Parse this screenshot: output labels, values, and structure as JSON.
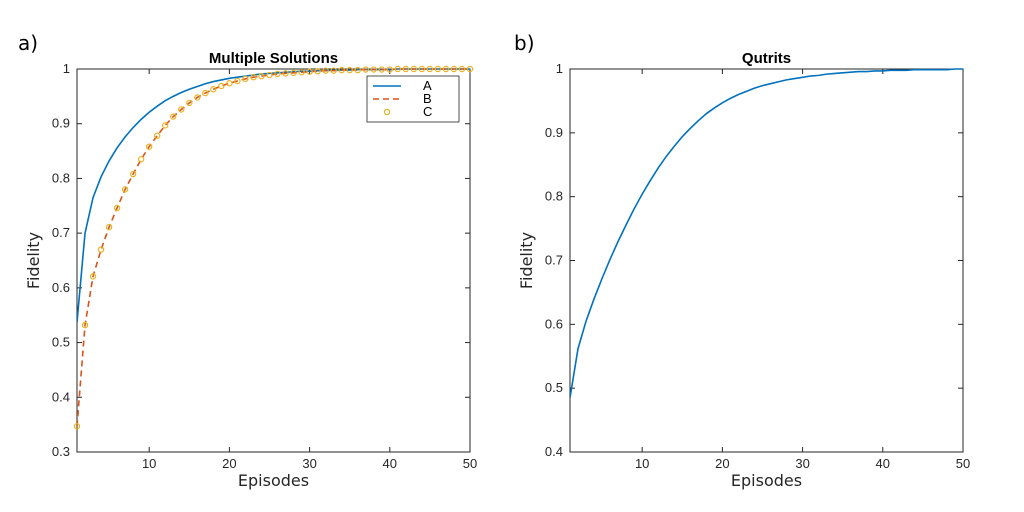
{
  "colors": {
    "series_a": "#0072BD",
    "series_b": "#D95319",
    "series_c": "#EDB120",
    "axis": "#262626"
  },
  "chart_data": [
    {
      "panel_label": "a)",
      "type": "line",
      "title": "Multiple Solutions",
      "xlabel": "Episodes",
      "ylabel": "Fidelity",
      "xlim": [
        1,
        50
      ],
      "ylim": [
        0.3,
        1.0
      ],
      "xticks": [
        "10",
        "20",
        "30",
        "40",
        "50"
      ],
      "yticks": [
        "0.3",
        "0.4",
        "0.5",
        "0.6",
        "0.7",
        "0.8",
        "0.9",
        "1"
      ],
      "legend_position": "top-right",
      "x": [
        1,
        2,
        3,
        4,
        5,
        6,
        7,
        8,
        9,
        10,
        11,
        12,
        13,
        14,
        15,
        16,
        17,
        18,
        19,
        20,
        21,
        22,
        23,
        24,
        25,
        26,
        27,
        28,
        29,
        30,
        31,
        32,
        33,
        34,
        35,
        36,
        37,
        38,
        39,
        40,
        41,
        42,
        43,
        44,
        45,
        46,
        47,
        48,
        49,
        50
      ],
      "series": [
        {
          "name": "A",
          "style": "solid",
          "values": [
            0.537,
            0.7,
            0.765,
            0.803,
            0.832,
            0.856,
            0.876,
            0.893,
            0.908,
            0.921,
            0.932,
            0.942,
            0.95,
            0.957,
            0.963,
            0.968,
            0.973,
            0.977,
            0.98,
            0.983,
            0.985,
            0.987,
            0.989,
            0.991,
            0.992,
            0.993,
            0.994,
            0.995,
            0.996,
            0.996,
            0.997,
            0.997,
            0.998,
            0.998,
            0.998,
            0.999,
            0.999,
            0.999,
            0.999,
            0.999,
            1.0,
            1.0,
            1.0,
            1.0,
            1.0,
            1.0,
            1.0,
            1.0,
            1.0,
            1.0
          ]
        },
        {
          "name": "B",
          "style": "dashed",
          "values": [
            0.347,
            0.532,
            0.621,
            0.67,
            0.711,
            0.746,
            0.78,
            0.808,
            0.835,
            0.858,
            0.878,
            0.897,
            0.913,
            0.926,
            0.938,
            0.948,
            0.956,
            0.963,
            0.969,
            0.974,
            0.978,
            0.982,
            0.985,
            0.987,
            0.989,
            0.991,
            0.992,
            0.993,
            0.994,
            0.995,
            0.996,
            0.997,
            0.997,
            0.998,
            0.998,
            0.998,
            0.999,
            0.999,
            0.999,
            0.999,
            1.0,
            1.0,
            1.0,
            1.0,
            1.0,
            1.0,
            1.0,
            1.0,
            1.0,
            1.0
          ]
        },
        {
          "name": "C",
          "style": "circles",
          "values": [
            0.347,
            0.532,
            0.621,
            0.67,
            0.711,
            0.746,
            0.78,
            0.808,
            0.835,
            0.858,
            0.878,
            0.897,
            0.913,
            0.926,
            0.938,
            0.948,
            0.956,
            0.963,
            0.969,
            0.974,
            0.978,
            0.982,
            0.985,
            0.987,
            0.989,
            0.991,
            0.992,
            0.993,
            0.994,
            0.995,
            0.996,
            0.997,
            0.997,
            0.998,
            0.998,
            0.998,
            0.999,
            0.999,
            0.999,
            0.999,
            1.0,
            1.0,
            1.0,
            1.0,
            1.0,
            1.0,
            1.0,
            1.0,
            1.0,
            1.0
          ]
        }
      ]
    },
    {
      "panel_label": "b)",
      "type": "line",
      "title": "Qutrits",
      "xlabel": "Episodes",
      "ylabel": "Fidelity",
      "xlim": [
        1,
        50
      ],
      "ylim": [
        0.4,
        1.0
      ],
      "xticks": [
        "10",
        "20",
        "30",
        "40",
        "50"
      ],
      "yticks": [
        "0.4",
        "0.5",
        "0.6",
        "0.7",
        "0.8",
        "0.9",
        "1"
      ],
      "x": [
        1,
        2,
        3,
        4,
        5,
        6,
        7,
        8,
        9,
        10,
        11,
        12,
        13,
        14,
        15,
        16,
        17,
        18,
        19,
        20,
        21,
        22,
        23,
        24,
        25,
        26,
        27,
        28,
        29,
        30,
        31,
        32,
        33,
        34,
        35,
        36,
        37,
        38,
        39,
        40,
        41,
        42,
        43,
        44,
        45,
        46,
        47,
        48,
        49,
        50
      ],
      "series": [
        {
          "style": "solid",
          "values": [
            0.485,
            0.562,
            0.605,
            0.64,
            0.672,
            0.702,
            0.73,
            0.756,
            0.781,
            0.804,
            0.825,
            0.845,
            0.863,
            0.879,
            0.894,
            0.907,
            0.919,
            0.93,
            0.939,
            0.947,
            0.954,
            0.96,
            0.965,
            0.97,
            0.974,
            0.977,
            0.98,
            0.983,
            0.985,
            0.987,
            0.989,
            0.99,
            0.992,
            0.993,
            0.994,
            0.995,
            0.996,
            0.996,
            0.997,
            0.997,
            0.998,
            0.998,
            0.998,
            0.999,
            0.999,
            0.999,
            0.999,
            0.999,
            1.0,
            1.0
          ]
        }
      ]
    }
  ]
}
